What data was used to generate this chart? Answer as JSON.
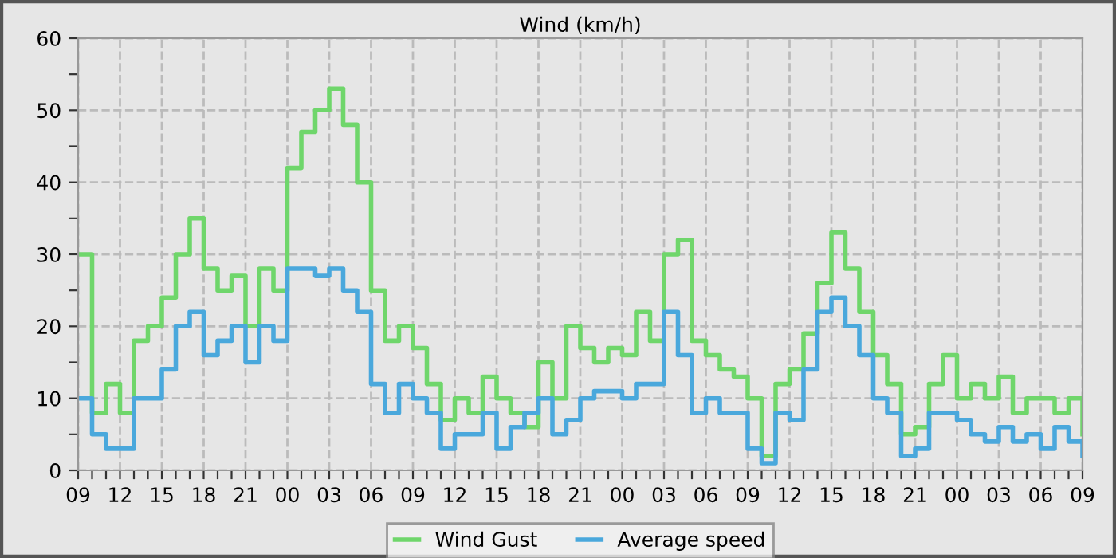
{
  "chart_data": {
    "type": "step",
    "title": "Wind (km/h)",
    "x": [
      9,
      10,
      11,
      12,
      13,
      14,
      15,
      16,
      17,
      18,
      19,
      20,
      21,
      22,
      23,
      24,
      25,
      26,
      27,
      28,
      29,
      30,
      31,
      32,
      33,
      34,
      35,
      36,
      37,
      38,
      39,
      40,
      41,
      42,
      43,
      44,
      45,
      46,
      47,
      48,
      49,
      50,
      51,
      52,
      53,
      54,
      55,
      56,
      57,
      58,
      59,
      60,
      61,
      62,
      63,
      64,
      65,
      66,
      67,
      68,
      69,
      70,
      71,
      72,
      73,
      74,
      75,
      76,
      77,
      78,
      79,
      80,
      81
    ],
    "series": [
      {
        "name": "Wind Gust",
        "color": "#6fd66b",
        "values": [
          30,
          8,
          12,
          8,
          18,
          20,
          24,
          30,
          35,
          28,
          25,
          27,
          20,
          28,
          25,
          42,
          47,
          50,
          53,
          48,
          40,
          25,
          18,
          20,
          17,
          12,
          7,
          10,
          8,
          13,
          10,
          8,
          6,
          15,
          10,
          20,
          17,
          15,
          17,
          16,
          22,
          18,
          30,
          32,
          18,
          16,
          14,
          13,
          10,
          2,
          12,
          14,
          19,
          26,
          33,
          28,
          22,
          16,
          12,
          5,
          6,
          12,
          16,
          10,
          12,
          10,
          13,
          8,
          10,
          10,
          8,
          10,
          5
        ]
      },
      {
        "name": "Average speed",
        "color": "#4aa8dc",
        "values": [
          10,
          5,
          3,
          3,
          10,
          10,
          14,
          20,
          22,
          16,
          18,
          20,
          15,
          20,
          18,
          28,
          28,
          27,
          28,
          25,
          22,
          12,
          8,
          12,
          10,
          8,
          3,
          5,
          5,
          8,
          3,
          6,
          8,
          10,
          5,
          7,
          10,
          11,
          11,
          10,
          12,
          12,
          22,
          16,
          8,
          10,
          8,
          8,
          3,
          1,
          8,
          7,
          14,
          22,
          24,
          20,
          16,
          10,
          8,
          2,
          3,
          8,
          8,
          7,
          5,
          4,
          6,
          4,
          5,
          3,
          6,
          4,
          2
        ]
      }
    ],
    "xlim": [
      9,
      81
    ],
    "xticks": [
      {
        "value": 9,
        "label": "09"
      },
      {
        "value": 10,
        "label": null
      },
      {
        "value": 11,
        "label": null
      },
      {
        "value": 12,
        "label": "12"
      },
      {
        "value": 13,
        "label": null
      },
      {
        "value": 14,
        "label": null
      },
      {
        "value": 15,
        "label": "15"
      },
      {
        "value": 16,
        "label": null
      },
      {
        "value": 17,
        "label": null
      },
      {
        "value": 18,
        "label": "18"
      },
      {
        "value": 19,
        "label": null
      },
      {
        "value": 20,
        "label": null
      },
      {
        "value": 21,
        "label": "21"
      },
      {
        "value": 22,
        "label": null
      },
      {
        "value": 23,
        "label": null
      },
      {
        "value": 24,
        "label": "00"
      },
      {
        "value": 25,
        "label": null
      },
      {
        "value": 26,
        "label": null
      },
      {
        "value": 27,
        "label": "03"
      },
      {
        "value": 28,
        "label": null
      },
      {
        "value": 29,
        "label": null
      },
      {
        "value": 30,
        "label": "06"
      },
      {
        "value": 31,
        "label": null
      },
      {
        "value": 32,
        "label": null
      },
      {
        "value": 33,
        "label": "09"
      },
      {
        "value": 34,
        "label": null
      },
      {
        "value": 35,
        "label": null
      },
      {
        "value": 36,
        "label": "12"
      },
      {
        "value": 37,
        "label": null
      },
      {
        "value": 38,
        "label": null
      },
      {
        "value": 39,
        "label": "15"
      },
      {
        "value": 40,
        "label": null
      },
      {
        "value": 41,
        "label": null
      },
      {
        "value": 42,
        "label": "18"
      },
      {
        "value": 43,
        "label": null
      },
      {
        "value": 44,
        "label": null
      },
      {
        "value": 45,
        "label": "21"
      },
      {
        "value": 46,
        "label": null
      },
      {
        "value": 47,
        "label": null
      },
      {
        "value": 48,
        "label": "00"
      },
      {
        "value": 49,
        "label": null
      },
      {
        "value": 50,
        "label": null
      },
      {
        "value": 51,
        "label": "03"
      },
      {
        "value": 52,
        "label": null
      },
      {
        "value": 53,
        "label": null
      },
      {
        "value": 54,
        "label": "06"
      },
      {
        "value": 55,
        "label": null
      },
      {
        "value": 56,
        "label": null
      },
      {
        "value": 57,
        "label": "09"
      },
      {
        "value": 58,
        "label": null
      },
      {
        "value": 59,
        "label": null
      },
      {
        "value": 60,
        "label": "12"
      },
      {
        "value": 61,
        "label": null
      },
      {
        "value": 62,
        "label": null
      },
      {
        "value": 63,
        "label": "15"
      },
      {
        "value": 64,
        "label": null
      },
      {
        "value": 65,
        "label": null
      },
      {
        "value": 66,
        "label": "18"
      },
      {
        "value": 67,
        "label": null
      },
      {
        "value": 68,
        "label": null
      },
      {
        "value": 69,
        "label": "21"
      },
      {
        "value": 70,
        "label": null
      },
      {
        "value": 71,
        "label": null
      },
      {
        "value": 72,
        "label": "00"
      },
      {
        "value": 73,
        "label": null
      },
      {
        "value": 74,
        "label": null
      },
      {
        "value": 75,
        "label": "03"
      },
      {
        "value": 76,
        "label": null
      },
      {
        "value": 77,
        "label": null
      },
      {
        "value": 78,
        "label": "06"
      },
      {
        "value": 79,
        "label": null
      },
      {
        "value": 80,
        "label": null
      },
      {
        "value": 81,
        "label": "09"
      }
    ],
    "ylim": [
      0,
      60
    ],
    "yticks": [
      0,
      {
        "value": 5,
        "label": null
      },
      10,
      {
        "value": 15,
        "label": null
      },
      20,
      {
        "value": 25,
        "label": null
      },
      30,
      {
        "value": 35,
        "label": null
      },
      40,
      {
        "value": 45,
        "label": null
      },
      50,
      {
        "value": 55,
        "label": null
      },
      60
    ],
    "grid": true,
    "legend": "bottom",
    "line_style": "solid",
    "marker": "none"
  }
}
